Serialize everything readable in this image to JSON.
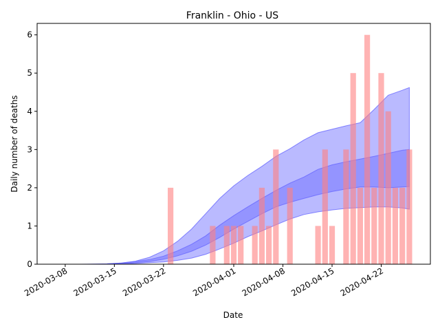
{
  "chart_data": {
    "type": "bar",
    "title": "Franklin - Ohio - US",
    "xlabel": "Date",
    "ylabel": "Daily number of deaths",
    "x_range": [
      "2020-03-04",
      "2020-04-29"
    ],
    "ylim": [
      0,
      6.3
    ],
    "grid": false,
    "x_ticks": [
      "2020-03-08",
      "2020-03-15",
      "2020-03-22",
      "2020-04-01",
      "2020-04-08",
      "2020-04-15",
      "2020-04-22"
    ],
    "y_ticks": [
      0,
      1,
      2,
      3,
      4,
      5,
      6
    ],
    "bar_color": "#ff8080",
    "band_color": "#6666ff",
    "bars": [
      {
        "date": "2020-03-23",
        "value": 2
      },
      {
        "date": "2020-03-29",
        "value": 1
      },
      {
        "date": "2020-03-31",
        "value": 1
      },
      {
        "date": "2020-04-01",
        "value": 1
      },
      {
        "date": "2020-04-02",
        "value": 1
      },
      {
        "date": "2020-04-04",
        "value": 1
      },
      {
        "date": "2020-04-05",
        "value": 2
      },
      {
        "date": "2020-04-06",
        "value": 1
      },
      {
        "date": "2020-04-07",
        "value": 3
      },
      {
        "date": "2020-04-09",
        "value": 2
      },
      {
        "date": "2020-04-13",
        "value": 1
      },
      {
        "date": "2020-04-14",
        "value": 3
      },
      {
        "date": "2020-04-15",
        "value": 1
      },
      {
        "date": "2020-04-17",
        "value": 3
      },
      {
        "date": "2020-04-18",
        "value": 5
      },
      {
        "date": "2020-04-19",
        "value": 2
      },
      {
        "date": "2020-04-20",
        "value": 6
      },
      {
        "date": "2020-04-21",
        "value": 2
      },
      {
        "date": "2020-04-22",
        "value": 5
      },
      {
        "date": "2020-04-23",
        "value": 4
      },
      {
        "date": "2020-04-24",
        "value": 2
      },
      {
        "date": "2020-04-25",
        "value": 2
      },
      {
        "date": "2020-04-26",
        "value": 3
      }
    ],
    "bands": {
      "outer": [
        {
          "date": "2020-03-10",
          "low": 0,
          "high": 0
        },
        {
          "date": "2020-03-14",
          "low": 0,
          "high": 0.01
        },
        {
          "date": "2020-03-16",
          "low": 0.01,
          "high": 0.03
        },
        {
          "date": "2020-03-18",
          "low": 0.02,
          "high": 0.08
        },
        {
          "date": "2020-03-20",
          "low": 0.04,
          "high": 0.18
        },
        {
          "date": "2020-03-22",
          "low": 0.06,
          "high": 0.35
        },
        {
          "date": "2020-03-24",
          "low": 0.1,
          "high": 0.6
        },
        {
          "date": "2020-03-26",
          "low": 0.16,
          "high": 0.92
        },
        {
          "date": "2020-03-28",
          "low": 0.26,
          "high": 1.32
        },
        {
          "date": "2020-03-30",
          "low": 0.4,
          "high": 1.72
        },
        {
          "date": "2020-04-01",
          "low": 0.55,
          "high": 2.05
        },
        {
          "date": "2020-04-03",
          "low": 0.72,
          "high": 2.32
        },
        {
          "date": "2020-04-05",
          "low": 0.87,
          "high": 2.56
        },
        {
          "date": "2020-04-07",
          "low": 1.03,
          "high": 2.82
        },
        {
          "date": "2020-04-09",
          "low": 1.18,
          "high": 3.02
        },
        {
          "date": "2020-04-11",
          "low": 1.3,
          "high": 3.25
        },
        {
          "date": "2020-04-13",
          "low": 1.37,
          "high": 3.44
        },
        {
          "date": "2020-04-15",
          "low": 1.42,
          "high": 3.53
        },
        {
          "date": "2020-04-17",
          "low": 1.46,
          "high": 3.62
        },
        {
          "date": "2020-04-19",
          "low": 1.48,
          "high": 3.7
        },
        {
          "date": "2020-04-21",
          "low": 1.5,
          "high": 4.05
        },
        {
          "date": "2020-04-23",
          "low": 1.5,
          "high": 4.42
        },
        {
          "date": "2020-04-25",
          "low": 1.47,
          "high": 4.55
        },
        {
          "date": "2020-04-26",
          "low": 1.44,
          "high": 4.62
        }
      ],
      "inner": [
        {
          "date": "2020-03-14",
          "low": 0,
          "high": 0.01
        },
        {
          "date": "2020-03-16",
          "low": 0.02,
          "high": 0.03
        },
        {
          "date": "2020-03-18",
          "low": 0.04,
          "high": 0.07
        },
        {
          "date": "2020-03-20",
          "low": 0.07,
          "high": 0.12
        },
        {
          "date": "2020-03-22",
          "low": 0.13,
          "high": 0.21
        },
        {
          "date": "2020-03-24",
          "low": 0.22,
          "high": 0.35
        },
        {
          "date": "2020-03-26",
          "low": 0.34,
          "high": 0.52
        },
        {
          "date": "2020-03-28",
          "low": 0.5,
          "high": 0.74
        },
        {
          "date": "2020-03-30",
          "low": 0.7,
          "high": 1.02
        },
        {
          "date": "2020-04-01",
          "low": 0.92,
          "high": 1.27
        },
        {
          "date": "2020-04-03",
          "low": 1.12,
          "high": 1.5
        },
        {
          "date": "2020-04-05",
          "low": 1.32,
          "high": 1.72
        },
        {
          "date": "2020-04-07",
          "low": 1.5,
          "high": 1.93
        },
        {
          "date": "2020-04-09",
          "low": 1.62,
          "high": 2.12
        },
        {
          "date": "2020-04-11",
          "low": 1.72,
          "high": 2.28
        },
        {
          "date": "2020-04-13",
          "low": 1.82,
          "high": 2.48
        },
        {
          "date": "2020-04-15",
          "low": 1.9,
          "high": 2.6
        },
        {
          "date": "2020-04-17",
          "low": 1.97,
          "high": 2.68
        },
        {
          "date": "2020-04-19",
          "low": 2.02,
          "high": 2.75
        },
        {
          "date": "2020-04-21",
          "low": 2.02,
          "high": 2.82
        },
        {
          "date": "2020-04-23",
          "low": 2.0,
          "high": 2.9
        },
        {
          "date": "2020-04-25",
          "low": 2.02,
          "high": 2.98
        },
        {
          "date": "2020-04-26",
          "low": 2.03,
          "high": 3.0
        }
      ]
    }
  }
}
